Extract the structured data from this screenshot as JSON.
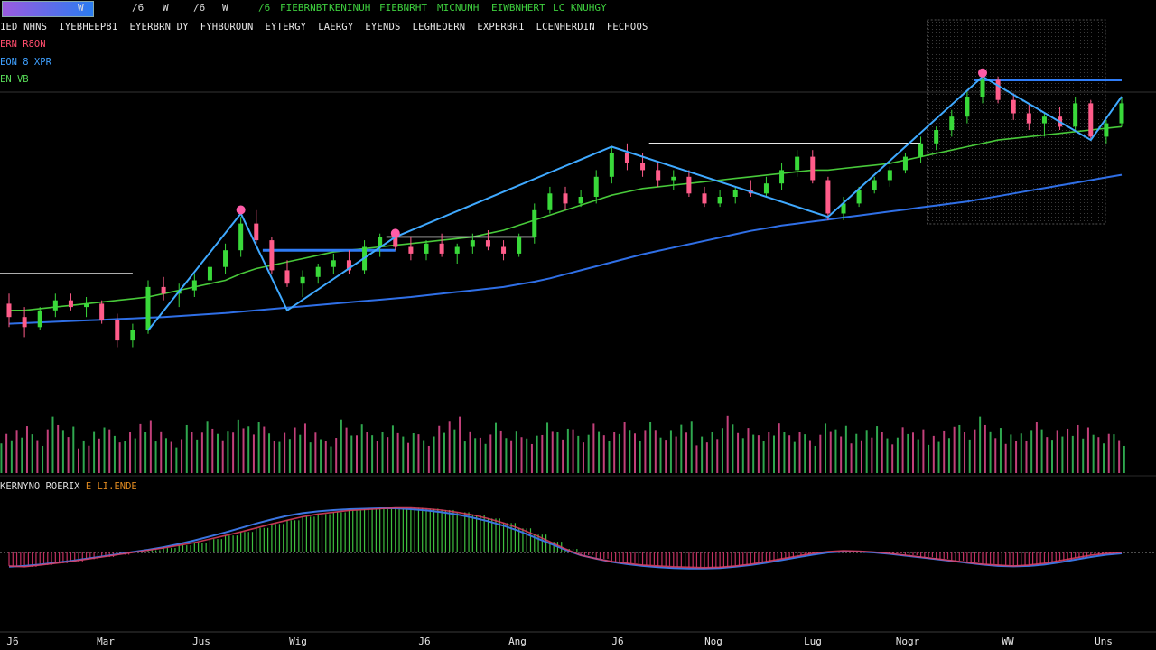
{
  "toolbar": {
    "items": [
      "W",
      "/6",
      "W",
      "/6",
      "W",
      "/6"
    ],
    "indicators_green": [
      "FIEBRNBT",
      "KENINUH",
      "FIEBNRHT",
      "MICNUNH",
      "EIWBNHERT",
      "LC KNUHGY"
    ]
  },
  "indicator_row": [
    "1ED NHNS",
    "IYEBHEEP81",
    "EYERBRN DY",
    "FYHBOROUN",
    "EYTERGY",
    "LAERGY",
    "EYENDS",
    "LEGHEOERN",
    "EXPERBR1",
    "LCENHERDIN",
    "FECHOOS"
  ],
  "legend": [
    {
      "text": "ERN R8ON",
      "color": "#ff4d6d"
    },
    {
      "text": "EON  8 XPR",
      "color": "#3fa0ff"
    },
    {
      "text": "EN  VB",
      "color": "#57d957"
    }
  ],
  "oscillator": {
    "label": "KERNYNO ROERIX",
    "highlight": "E LI.ENDE"
  },
  "colors": {
    "up": "#39d93a",
    "down": "#ff5c8a",
    "ma_fast": "#48c93a",
    "ma_slow": "#2f6fe6",
    "zigzag": "#3fa9ff",
    "level": "#e8e8e8",
    "level_blue": "#2f7cf6",
    "marker": "#ff5ca8",
    "osc_signal": "#e04060",
    "osc_line": "#3a74e0"
  },
  "chart_data": {
    "type": "candlestick",
    "x_ticks": [
      "J6",
      "Mar",
      "Jus",
      "Wig",
      "J6",
      "Ang",
      "J6",
      "Nog",
      "Lug",
      "Nogr",
      "WW",
      "Uns"
    ],
    "y_range": [
      0,
      100
    ],
    "candles": [
      {
        "o": 28,
        "h": 31,
        "l": 21,
        "c": 24
      },
      {
        "o": 24,
        "h": 27,
        "l": 18,
        "c": 21
      },
      {
        "o": 21,
        "h": 27,
        "l": 20,
        "c": 26
      },
      {
        "o": 26,
        "h": 31,
        "l": 24,
        "c": 29
      },
      {
        "o": 29,
        "h": 31,
        "l": 26,
        "c": 27
      },
      {
        "o": 27,
        "h": 30,
        "l": 24,
        "c": 28
      },
      {
        "o": 28,
        "h": 29,
        "l": 22,
        "c": 23
      },
      {
        "o": 23,
        "h": 25,
        "l": 15,
        "c": 17
      },
      {
        "o": 17,
        "h": 22,
        "l": 15,
        "c": 20
      },
      {
        "o": 20,
        "h": 35,
        "l": 19,
        "c": 33
      },
      {
        "o": 33,
        "h": 36,
        "l": 29,
        "c": 31
      },
      {
        "o": 31,
        "h": 34,
        "l": 27,
        "c": 32
      },
      {
        "o": 32,
        "h": 37,
        "l": 30,
        "c": 35
      },
      {
        "o": 35,
        "h": 41,
        "l": 33,
        "c": 39
      },
      {
        "o": 39,
        "h": 46,
        "l": 37,
        "c": 44
      },
      {
        "o": 44,
        "h": 54,
        "l": 42,
        "c": 52
      },
      {
        "o": 52,
        "h": 56,
        "l": 46,
        "c": 47
      },
      {
        "o": 47,
        "h": 48,
        "l": 37,
        "c": 38
      },
      {
        "o": 38,
        "h": 41,
        "l": 33,
        "c": 34
      },
      {
        "o": 34,
        "h": 38,
        "l": 30,
        "c": 36
      },
      {
        "o": 36,
        "h": 40,
        "l": 34,
        "c": 39
      },
      {
        "o": 39,
        "h": 43,
        "l": 37,
        "c": 41
      },
      {
        "o": 41,
        "h": 44,
        "l": 37,
        "c": 38
      },
      {
        "o": 38,
        "h": 47,
        "l": 37,
        "c": 45
      },
      {
        "o": 45,
        "h": 49,
        "l": 42,
        "c": 48
      },
      {
        "o": 48,
        "h": 50,
        "l": 44,
        "c": 45
      },
      {
        "o": 45,
        "h": 48,
        "l": 41,
        "c": 43
      },
      {
        "o": 43,
        "h": 47,
        "l": 41,
        "c": 46
      },
      {
        "o": 46,
        "h": 49,
        "l": 42,
        "c": 43
      },
      {
        "o": 43,
        "h": 46,
        "l": 40,
        "c": 45
      },
      {
        "o": 45,
        "h": 49,
        "l": 43,
        "c": 47
      },
      {
        "o": 47,
        "h": 50,
        "l": 44,
        "c": 45
      },
      {
        "o": 45,
        "h": 47,
        "l": 41,
        "c": 43
      },
      {
        "o": 43,
        "h": 49,
        "l": 42,
        "c": 48
      },
      {
        "o": 48,
        "h": 58,
        "l": 46,
        "c": 56
      },
      {
        "o": 56,
        "h": 63,
        "l": 55,
        "c": 61
      },
      {
        "o": 61,
        "h": 63,
        "l": 56,
        "c": 58
      },
      {
        "o": 58,
        "h": 62,
        "l": 57,
        "c": 60
      },
      {
        "o": 60,
        "h": 68,
        "l": 58,
        "c": 66
      },
      {
        "o": 66,
        "h": 75,
        "l": 64,
        "c": 73
      },
      {
        "o": 73,
        "h": 76,
        "l": 68,
        "c": 70
      },
      {
        "o": 70,
        "h": 73,
        "l": 66,
        "c": 68
      },
      {
        "o": 68,
        "h": 70,
        "l": 63,
        "c": 65
      },
      {
        "o": 65,
        "h": 68,
        "l": 62,
        "c": 66
      },
      {
        "o": 66,
        "h": 68,
        "l": 60,
        "c": 61
      },
      {
        "o": 61,
        "h": 63,
        "l": 57,
        "c": 58
      },
      {
        "o": 58,
        "h": 62,
        "l": 57,
        "c": 60
      },
      {
        "o": 60,
        "h": 63,
        "l": 58,
        "c": 62
      },
      {
        "o": 62,
        "h": 65,
        "l": 60,
        "c": 61
      },
      {
        "o": 61,
        "h": 66,
        "l": 60,
        "c": 64
      },
      {
        "o": 64,
        "h": 70,
        "l": 62,
        "c": 68
      },
      {
        "o": 68,
        "h": 74,
        "l": 66,
        "c": 72
      },
      {
        "o": 72,
        "h": 74,
        "l": 64,
        "c": 65
      },
      {
        "o": 65,
        "h": 66,
        "l": 53,
        "c": 55
      },
      {
        "o": 55,
        "h": 60,
        "l": 53,
        "c": 58
      },
      {
        "o": 58,
        "h": 63,
        "l": 57,
        "c": 62
      },
      {
        "o": 62,
        "h": 66,
        "l": 61,
        "c": 65
      },
      {
        "o": 65,
        "h": 69,
        "l": 63,
        "c": 68
      },
      {
        "o": 68,
        "h": 73,
        "l": 67,
        "c": 72
      },
      {
        "o": 72,
        "h": 78,
        "l": 70,
        "c": 76
      },
      {
        "o": 76,
        "h": 81,
        "l": 74,
        "c": 80
      },
      {
        "o": 80,
        "h": 86,
        "l": 78,
        "c": 84
      },
      {
        "o": 84,
        "h": 92,
        "l": 82,
        "c": 90
      },
      {
        "o": 90,
        "h": 97,
        "l": 88,
        "c": 95
      },
      {
        "o": 95,
        "h": 96,
        "l": 88,
        "c": 89
      },
      {
        "o": 89,
        "h": 91,
        "l": 83,
        "c": 85
      },
      {
        "o": 85,
        "h": 88,
        "l": 80,
        "c": 82
      },
      {
        "o": 82,
        "h": 85,
        "l": 78,
        "c": 84
      },
      {
        "o": 84,
        "h": 87,
        "l": 80,
        "c": 81
      },
      {
        "o": 81,
        "h": 90,
        "l": 80,
        "c": 88
      },
      {
        "o": 88,
        "h": 89,
        "l": 77,
        "c": 78
      },
      {
        "o": 78,
        "h": 83,
        "l": 76,
        "c": 82
      },
      {
        "o": 82,
        "h": 90,
        "l": 81,
        "c": 88
      }
    ],
    "ma_fast": [
      26,
      26,
      26.5,
      27,
      27.5,
      28,
      28.5,
      29,
      29.5,
      30,
      31,
      32,
      33,
      34,
      35,
      37,
      38.5,
      39.5,
      40.5,
      41.5,
      42.5,
      43.5,
      44,
      44.5,
      45,
      45.5,
      46,
      46.5,
      47,
      47.5,
      48,
      49,
      50,
      51.5,
      53,
      54.5,
      56,
      57.5,
      59,
      60.5,
      61.5,
      62.5,
      63,
      63.5,
      64,
      64.5,
      65,
      65.5,
      66,
      66.5,
      67,
      67.5,
      68,
      68,
      68.5,
      69,
      69.5,
      70,
      71,
      72,
      73,
      74,
      75,
      76,
      77,
      77.5,
      78,
      78.5,
      79,
      79.5,
      80,
      80.5,
      81
    ],
    "ma_slow": [
      22,
      22.2,
      22.4,
      22.6,
      22.8,
      23,
      23.2,
      23.4,
      23.6,
      23.8,
      24,
      24.3,
      24.6,
      24.9,
      25.2,
      25.6,
      26,
      26.4,
      26.8,
      27.2,
      27.6,
      28,
      28.4,
      28.8,
      29.2,
      29.6,
      30,
      30.5,
      31,
      31.5,
      32,
      32.5,
      33,
      33.8,
      34.6,
      35.6,
      36.8,
      38,
      39.2,
      40.4,
      41.6,
      42.8,
      43.8,
      44.8,
      45.8,
      46.8,
      47.8,
      48.8,
      49.8,
      50.6,
      51.4,
      52,
      52.6,
      53.2,
      53.8,
      54.4,
      55,
      55.6,
      56.2,
      56.8,
      57.4,
      58,
      58.6,
      59.4,
      60.2,
      61,
      61.8,
      62.6,
      63.4,
      64.2,
      65,
      65.8,
      66.6
    ],
    "zigzag": [
      [
        9,
        20
      ],
      [
        15,
        55
      ],
      [
        18,
        26
      ],
      [
        25,
        48
      ],
      [
        39,
        75
      ],
      [
        53,
        54
      ],
      [
        63,
        96
      ],
      [
        70,
        77
      ],
      [
        72,
        90
      ]
    ],
    "level_lines": [
      {
        "from": 0,
        "to": 8,
        "value": 37,
        "color": "white"
      },
      {
        "from": 17,
        "to": 25,
        "value": 44,
        "color": "blue"
      },
      {
        "from": 25,
        "to": 34,
        "value": 48,
        "color": "white"
      },
      {
        "from": 42,
        "to": 59,
        "value": 76,
        "color": "white"
      },
      {
        "from": 63,
        "to": 72,
        "value": 95,
        "color": "blue"
      }
    ],
    "volume": [
      60,
      72,
      55,
      80,
      66,
      50,
      70,
      62,
      58,
      75,
      64,
      52,
      68,
      74,
      60,
      82,
      78,
      66,
      57,
      70,
      62,
      54,
      76,
      69,
      58,
      73,
      61,
      55,
      67,
      80,
      64,
      59,
      71,
      60,
      53,
      77,
      68,
      62,
      70,
      58,
      79,
      66,
      72,
      61,
      74,
      56,
      69,
      81,
      64,
      58,
      76,
      63,
      55,
      70,
      67,
      60,
      72,
      58,
      65,
      62,
      57,
      71,
      68,
      80,
      64,
      59,
      66,
      73,
      61,
      68,
      70,
      60,
      55
    ],
    "volume_range": [
      0,
      100
    ],
    "oscillator_hist": [
      -0.3,
      -0.32,
      -0.28,
      -0.24,
      -0.2,
      -0.15,
      -0.1,
      -0.05,
      0,
      0.05,
      0.1,
      0.16,
      0.22,
      0.3,
      0.38,
      0.46,
      0.55,
      0.64,
      0.72,
      0.8,
      0.86,
      0.9,
      0.94,
      0.96,
      0.98,
      1,
      1,
      0.98,
      0.95,
      0.9,
      0.84,
      0.76,
      0.66,
      0.54,
      0.4,
      0.24,
      0.08,
      -0.06,
      -0.14,
      -0.2,
      -0.24,
      -0.28,
      -0.3,
      -0.32,
      -0.33,
      -0.34,
      -0.33,
      -0.3,
      -0.26,
      -0.2,
      -0.14,
      -0.08,
      -0.02,
      0.02,
      0.04,
      0.03,
      0.01,
      -0.02,
      -0.06,
      -0.1,
      -0.14,
      -0.18,
      -0.22,
      -0.26,
      -0.28,
      -0.3,
      -0.28,
      -0.24,
      -0.18,
      -0.12,
      -0.06,
      -0.02,
      0
    ],
    "oscillator_signal": [
      -0.32,
      -0.3,
      -0.27,
      -0.23,
      -0.19,
      -0.14,
      -0.09,
      -0.04,
      0.01,
      0.06,
      0.12,
      0.19,
      0.27,
      0.36,
      0.45,
      0.55,
      0.65,
      0.74,
      0.82,
      0.88,
      0.92,
      0.95,
      0.97,
      0.98,
      0.99,
      0.99,
      0.97,
      0.94,
      0.9,
      0.85,
      0.78,
      0.7,
      0.6,
      0.48,
      0.34,
      0.2,
      0.06,
      -0.06,
      -0.14,
      -0.21,
      -0.26,
      -0.3,
      -0.33,
      -0.35,
      -0.36,
      -0.36,
      -0.35,
      -0.32,
      -0.28,
      -0.23,
      -0.17,
      -0.11,
      -0.05,
      0,
      0.02,
      0.02,
      0,
      -0.03,
      -0.07,
      -0.11,
      -0.15,
      -0.19,
      -0.23,
      -0.27,
      -0.3,
      -0.31,
      -0.3,
      -0.27,
      -0.22,
      -0.16,
      -0.1,
      -0.05,
      -0.02
    ],
    "oscillator_range": [
      -0.5,
      1.05
    ]
  }
}
